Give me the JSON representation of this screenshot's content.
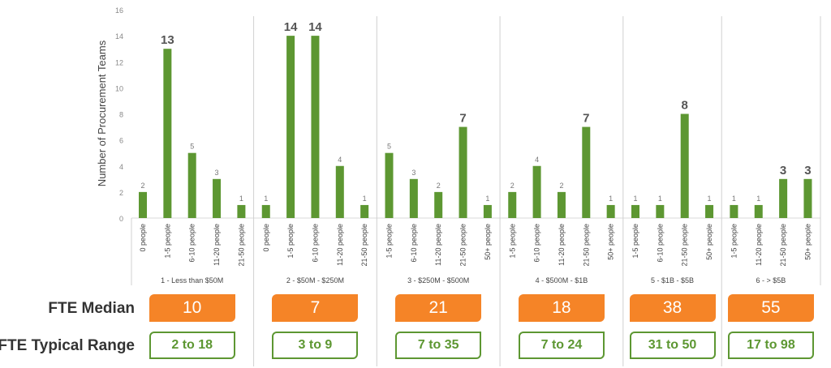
{
  "chart_data": {
    "type": "bar",
    "ylabel": "Number of Procurement Teams",
    "ylim": [
      0,
      16
    ],
    "yticks": [
      0,
      2,
      4,
      6,
      8,
      10,
      12,
      14,
      16
    ],
    "bar_color": "#5d9732",
    "groups": [
      {
        "label": "1 - Less than $50M",
        "categories": [
          "0 people",
          "1-5 people",
          "6-10 people",
          "11-20 people",
          "21-50 people"
        ],
        "values": [
          2,
          13,
          5,
          3,
          1
        ],
        "highlight": [
          1
        ]
      },
      {
        "label": "2 - $50M - $250M",
        "categories": [
          "0 people",
          "1-5 people",
          "6-10 people",
          "11-20 people",
          "21-50 people"
        ],
        "values": [
          1,
          14,
          14,
          4,
          1
        ],
        "highlight": [
          1,
          2
        ]
      },
      {
        "label": "3 - $250M - $500M",
        "categories": [
          "1-5 people",
          "6-10 people",
          "11-20 people",
          "21-50 people",
          "50+ people"
        ],
        "values": [
          5,
          3,
          2,
          7,
          1
        ],
        "highlight": [
          3
        ]
      },
      {
        "label": "4 - $500M - $1B",
        "categories": [
          "1-5 people",
          "6-10 people",
          "11-20 people",
          "21-50 people",
          "50+ people"
        ],
        "values": [
          2,
          4,
          2,
          7,
          1
        ],
        "highlight": [
          3
        ]
      },
      {
        "label": "5 - $1B - $5B",
        "categories": [
          "1-5 people",
          "6-10 people",
          "21-50 people",
          "50+ people"
        ],
        "values": [
          1,
          1,
          8,
          1
        ],
        "highlight": [
          2
        ]
      },
      {
        "label": "6 - > $5B",
        "categories": [
          "1-5 people",
          "11-20 people",
          "21-50 people",
          "50+ people"
        ],
        "values": [
          1,
          1,
          3,
          3
        ],
        "highlight": [
          2,
          3
        ]
      }
    ]
  },
  "summary": {
    "median_label": "FTE Median",
    "range_label": "FTE Typical Range",
    "medians": [
      "10",
      "7",
      "21",
      "18",
      "38",
      "55"
    ],
    "ranges": [
      "2 to 18",
      "3 to 9",
      "7 to 35",
      "7 to 24",
      "31 to 50",
      "17 to 98"
    ],
    "median_color": "#f58427",
    "range_color": "#5d9732"
  }
}
